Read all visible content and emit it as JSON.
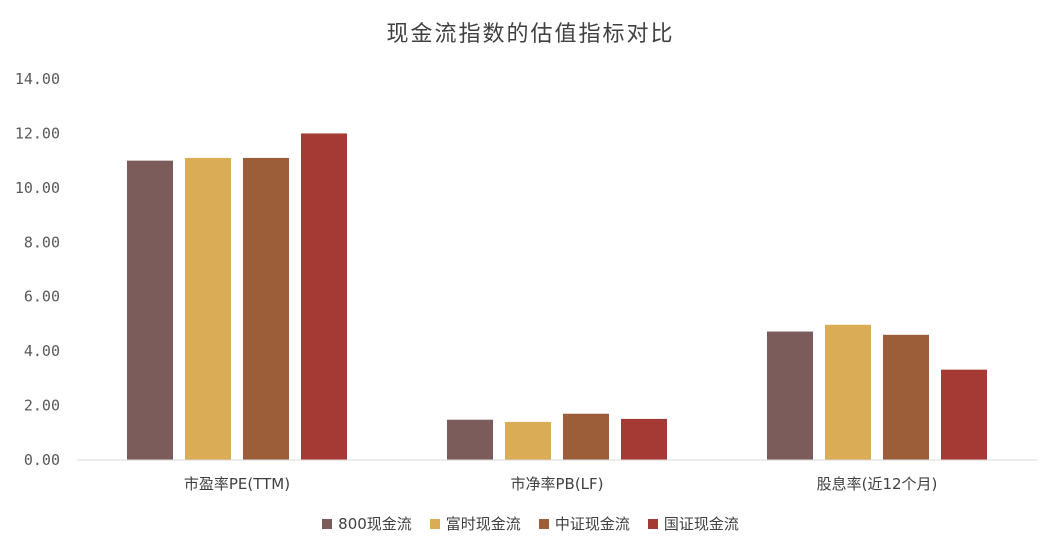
{
  "chart_data": {
    "type": "bar",
    "title": "现金流指数的估值指标对比",
    "categories": [
      "市盈率PE(TTM)",
      "市净率PB(LF)",
      "股息率(近12个月)"
    ],
    "series": [
      {
        "name": "800现金流",
        "color": "#7B5C5A",
        "values": [
          11.0,
          1.48,
          4.72
        ]
      },
      {
        "name": "富时现金流",
        "color": "#D9AC55",
        "values": [
          11.1,
          1.4,
          4.97
        ]
      },
      {
        "name": "中证现金流",
        "color": "#9C5E38",
        "values": [
          11.1,
          1.7,
          4.6
        ]
      },
      {
        "name": "国证现金流",
        "color": "#A53A34",
        "values": [
          12.0,
          1.51,
          3.32
        ]
      }
    ],
    "yticks": [
      "0.00",
      "2.00",
      "4.00",
      "6.00",
      "8.00",
      "10.00",
      "12.00",
      "14.00"
    ],
    "ylim": [
      0,
      14
    ],
    "grid": false,
    "legend": "bottom"
  }
}
